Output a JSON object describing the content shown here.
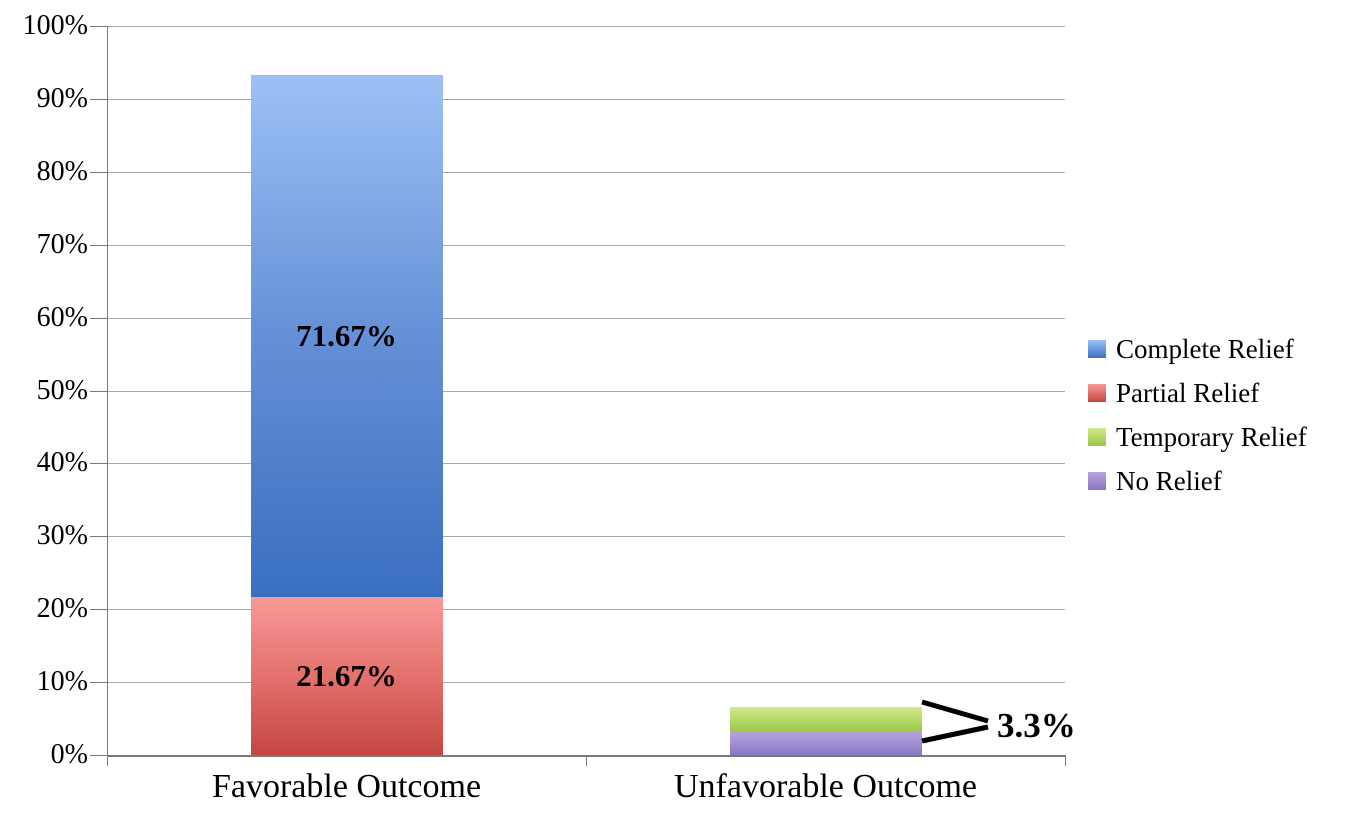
{
  "chart_data": {
    "type": "bar",
    "subtype": "stacked-column",
    "title": "",
    "categories": [
      "Favorable Outcome",
      "Unfavorable Outcome"
    ],
    "series": [
      {
        "name": "Complete Relief",
        "values": [
          71.67,
          0
        ],
        "color_top": "#9dc1f6",
        "color_mid": "#6590d6",
        "color_bottom": "#3a6fc0"
      },
      {
        "name": "Partial Relief",
        "values": [
          21.67,
          0
        ],
        "color_top": "#f89a98",
        "color_mid": "#e3716d",
        "color_bottom": "#c54642"
      },
      {
        "name": "Temporary Relief",
        "values": [
          0,
          3.3
        ],
        "color_top": "#cfe98e",
        "color_mid": "#b8da6b",
        "color_bottom": "#9cc847"
      },
      {
        "name": "No Relief",
        "values": [
          0,
          3.3
        ],
        "color_top": "#b5a5df",
        "color_mid": "#a18fd2",
        "color_bottom": "#8a77c2"
      }
    ],
    "stacks": [
      {
        "category": "Favorable Outcome",
        "segments": [
          {
            "series": "Partial Relief",
            "value": 21.67,
            "label": "21.67%"
          },
          {
            "series": "Complete Relief",
            "value": 71.67,
            "label": "71.67%"
          }
        ]
      },
      {
        "category": "Unfavorable Outcome",
        "segments": [
          {
            "series": "No Relief",
            "value": 3.3,
            "label": ""
          },
          {
            "series": "Temporary Relief",
            "value": 3.3,
            "label": ""
          }
        ]
      }
    ],
    "annotation": {
      "text": "3.3%"
    },
    "y_axis": {
      "min": 0,
      "max": 100,
      "step": 10,
      "unit": "%",
      "tick_labels": [
        "0%",
        "10%",
        "20%",
        "30%",
        "40%",
        "50%",
        "60%",
        "70%",
        "80%",
        "90%",
        "100%"
      ]
    },
    "x_axis": {
      "labels": [
        "Favorable Outcome",
        "Unfavorable Outcome"
      ]
    },
    "legend": {
      "position": "right",
      "items": [
        "Complete Relief",
        "Partial Relief",
        "Temporary Relief",
        "No Relief"
      ]
    },
    "grid": true,
    "colors": {
      "gridline": "#a8a8a8",
      "axis": "#7a7a7a",
      "text": "#000000",
      "callout": "#000000"
    }
  }
}
